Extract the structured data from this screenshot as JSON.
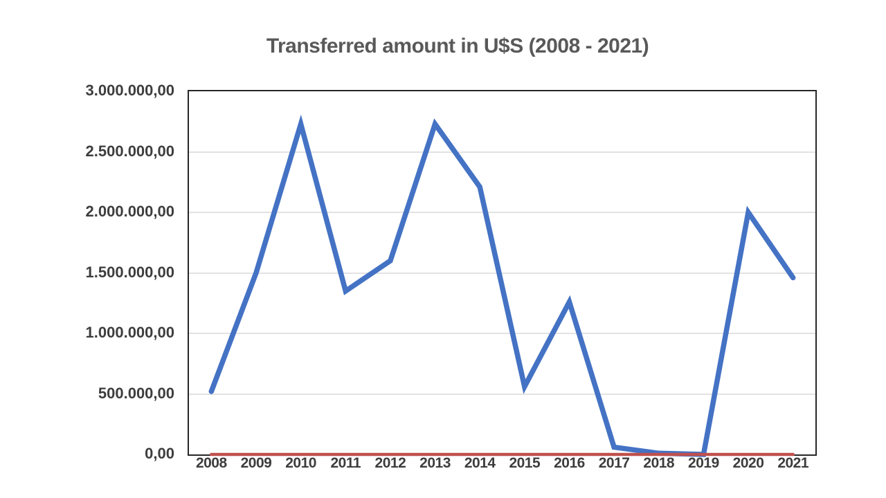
{
  "page": {
    "background_color": "#ffffff"
  },
  "chart": {
    "title_color": "#595959",
    "axis_label_color": "#3d3d3d",
    "plot_border_color": "#262626",
    "gridline_color": "#e2e2e2"
  },
  "chart_data": {
    "type": "line",
    "title": "Transferred amount in U$S (2008 - 2021)",
    "categories": [
      "2008",
      "2009",
      "2010",
      "2011",
      "2012",
      "2013",
      "2014",
      "2015",
      "2016",
      "2017",
      "2018",
      "2019",
      "2020",
      "2021"
    ],
    "series": [
      {
        "name": "transferred-amount-blue",
        "color": "#4472C4",
        "stroke_width": 7.5,
        "values": [
          520000,
          1500000,
          2730000,
          1350000,
          1600000,
          2730000,
          2210000,
          560000,
          1260000,
          60000,
          10000,
          0,
          2000000,
          1460000
        ]
      },
      {
        "name": "baseline-red",
        "color": "#C0504D",
        "stroke_width": 4.5,
        "values": [
          0,
          0,
          0,
          0,
          0,
          0,
          0,
          0,
          0,
          0,
          0,
          0,
          0,
          0
        ]
      }
    ],
    "xlabel": "",
    "ylabel": "",
    "ylim": [
      0,
      3000000
    ],
    "y_tick_step": 500000,
    "y_tick_labels": [
      "3.000.000,00",
      "2.500.000,00",
      "2.000.000,00",
      "1.500.000,00",
      "1.000.000,00",
      "500.000,00",
      "0,00"
    ],
    "grid": "horizontal",
    "legend_position": "none"
  }
}
